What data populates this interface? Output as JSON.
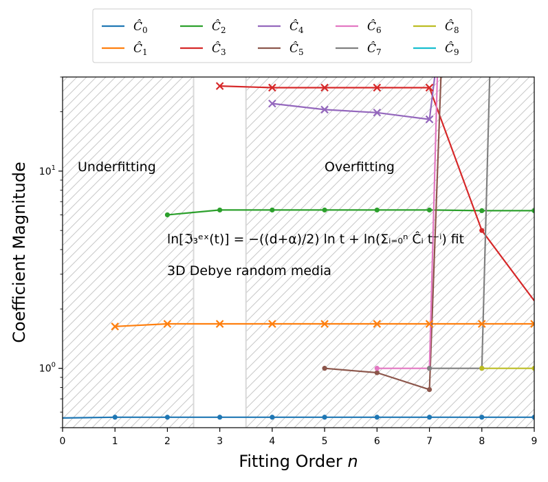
{
  "chart_data": {
    "type": "line",
    "title": "",
    "xlabel_prefix": "Fitting Order ",
    "xlabel_var": "n",
    "ylabel": "Coefficient Magnitude",
    "xlim": [
      0,
      9
    ],
    "ylim": [
      0.5,
      30
    ],
    "yscale": "log",
    "x_ticks": [
      "0",
      "1",
      "2",
      "3",
      "4",
      "5",
      "6",
      "7",
      "8",
      "9"
    ],
    "y_ticks": [
      {
        "value": 1,
        "base": "10",
        "exp": "0"
      },
      {
        "value": 10,
        "base": "10",
        "exp": "1"
      }
    ],
    "grid": false,
    "legend_position": "above-plot",
    "regions": [
      {
        "label": "Underfitting",
        "x_range": [
          0,
          2.5
        ],
        "hatch": true
      },
      {
        "label": "Overfitting",
        "x_range": [
          3.5,
          9
        ],
        "hatch": true
      }
    ],
    "annotations": {
      "formula": "ln[ℑ₃ᵉˣ(t)] = −((d+α)/2) ln t + ln(Σᵢ₌₀ⁿ Ĉᵢ t⁻ⁱ) fit",
      "subtitle": "3D Debye random media"
    },
    "series": [
      {
        "name": "Ĉ0",
        "color": "#1f77b4",
        "points": [
          [
            0,
            0.56
          ],
          [
            1,
            0.565
          ],
          [
            2,
            0.565
          ],
          [
            3,
            0.565
          ],
          [
            4,
            0.565
          ],
          [
            5,
            0.565
          ],
          [
            6,
            0.565
          ],
          [
            7,
            0.565
          ],
          [
            8,
            0.565
          ],
          [
            9,
            0.565
          ]
        ],
        "marker_from": 1,
        "markers": {
          "dot": [
            1,
            2,
            3,
            4,
            5,
            6,
            7,
            8,
            9
          ],
          "x": []
        }
      },
      {
        "name": "Ĉ1",
        "color": "#ff7f0e",
        "points": [
          [
            1,
            1.63
          ],
          [
            2,
            1.68
          ],
          [
            3,
            1.68
          ],
          [
            4,
            1.68
          ],
          [
            5,
            1.68
          ],
          [
            6,
            1.68
          ],
          [
            7,
            1.68
          ],
          [
            8,
            1.68
          ],
          [
            9,
            1.68
          ]
        ],
        "markers": {
          "dot": [],
          "x": [
            1,
            2,
            3,
            4,
            5,
            6,
            7,
            8,
            9
          ]
        }
      },
      {
        "name": "Ĉ2",
        "color": "#2ca02c",
        "points": [
          [
            2,
            6.0
          ],
          [
            3,
            6.35
          ],
          [
            4,
            6.35
          ],
          [
            5,
            6.35
          ],
          [
            6,
            6.35
          ],
          [
            7,
            6.35
          ],
          [
            8,
            6.3
          ],
          [
            9,
            6.3
          ]
        ],
        "markers": {
          "dot": [
            2,
            3,
            4,
            5,
            6,
            7,
            8,
            9
          ],
          "x": []
        }
      },
      {
        "name": "Ĉ3",
        "color": "#d62728",
        "points": [
          [
            3,
            27.0
          ],
          [
            4,
            26.5
          ],
          [
            5,
            26.5
          ],
          [
            6,
            26.5
          ],
          [
            7,
            26.5
          ],
          [
            8,
            5.0
          ],
          [
            9,
            2.2
          ]
        ],
        "markers": {
          "dot": [
            8
          ],
          "x": [
            3,
            4,
            5,
            6,
            7
          ]
        }
      },
      {
        "name": "Ĉ4",
        "color": "#9467bd",
        "points": [
          [
            4,
            22.0
          ],
          [
            5,
            20.5
          ],
          [
            6,
            19.8
          ],
          [
            7,
            18.3
          ],
          [
            7.1,
            30
          ]
        ],
        "markers": {
          "dot": [],
          "x": [
            4,
            5,
            6,
            7
          ]
        }
      },
      {
        "name": "Ĉ5",
        "color": "#8c564b",
        "points": [
          [
            5,
            1.0
          ],
          [
            6,
            0.95
          ],
          [
            7,
            0.78
          ],
          [
            7.22,
            30
          ]
        ],
        "markers": {
          "dot": [
            5,
            6,
            7
          ],
          "x": []
        }
      },
      {
        "name": "Ĉ6",
        "color": "#e377c2",
        "points": [
          [
            6,
            1.0
          ],
          [
            7,
            1.0
          ],
          [
            7.15,
            30
          ]
        ],
        "markers": {
          "dot": [
            6,
            7
          ],
          "x": []
        }
      },
      {
        "name": "Ĉ7",
        "color": "#7f7f7f",
        "points": [
          [
            7,
            1.0
          ],
          [
            8,
            1.0
          ],
          [
            8.15,
            30
          ]
        ],
        "markers": {
          "dot": [
            7,
            8
          ],
          "x": []
        }
      },
      {
        "name": "Ĉ8",
        "color": "#bcbd22",
        "points": [
          [
            8,
            1.0
          ],
          [
            9,
            1.0
          ]
        ],
        "markers": {
          "dot": [
            8,
            9
          ],
          "x": []
        }
      },
      {
        "name": "Ĉ9",
        "color": "#17becf",
        "points": [],
        "markers": {
          "dot": [],
          "x": []
        }
      }
    ]
  }
}
